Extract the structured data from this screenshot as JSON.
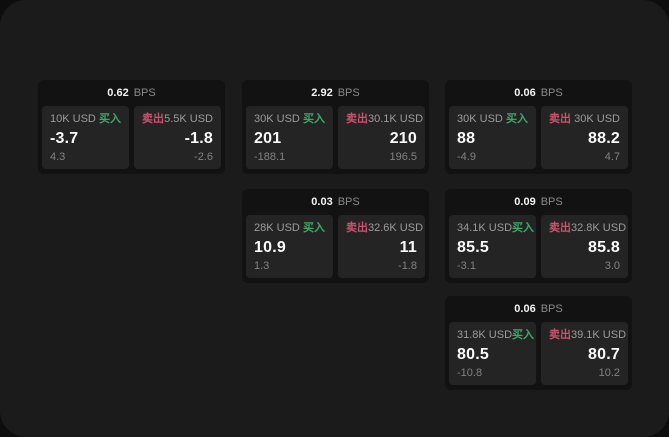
{
  "colors": {
    "outer_background": "#0d0d0d",
    "surface": "#1b1b1b",
    "card_background": "#121212",
    "panel_background": "#242424",
    "text_primary": "#fafafa",
    "text_secondary": "#9b9b9b",
    "text_dim": "#828282",
    "buy_green": "#3fa768",
    "sell_red": "#c9536e"
  },
  "labels": {
    "bps": "BPS",
    "buy": "买入",
    "sell": "卖出"
  },
  "cards": [
    {
      "bps": "0.62",
      "col": 1,
      "row": 1,
      "buy": {
        "amount": "10K USD",
        "value": "-3.7",
        "sub": "4.3"
      },
      "sell": {
        "amount": "5.5K USD",
        "value": "-1.8",
        "sub": "-2.6"
      }
    },
    {
      "bps": "2.92",
      "col": 2,
      "row": 1,
      "buy": {
        "amount": "30K USD",
        "value": "201",
        "sub": "-188.1"
      },
      "sell": {
        "amount": "30.1K USD",
        "value": "210",
        "sub": "196.5"
      }
    },
    {
      "bps": "0.06",
      "col": 3,
      "row": 1,
      "buy": {
        "amount": "30K USD",
        "value": "88",
        "sub": "-4.9"
      },
      "sell": {
        "amount": "30K USD",
        "value": "88.2",
        "sub": "4.7"
      }
    },
    {
      "bps": "0.03",
      "col": 2,
      "row": 2,
      "buy": {
        "amount": "28K USD",
        "value": "10.9",
        "sub": "1.3"
      },
      "sell": {
        "amount": "32.6K USD",
        "value": "11",
        "sub": "-1.8"
      }
    },
    {
      "bps": "0.09",
      "col": 3,
      "row": 2,
      "buy": {
        "amount": "34.1K USD",
        "value": "85.5",
        "sub": "-3.1"
      },
      "sell": {
        "amount": "32.8K USD",
        "value": "85.8",
        "sub": "3.0"
      }
    },
    {
      "bps": "0.06",
      "col": 3,
      "row": 3,
      "buy": {
        "amount": "31.8K USD",
        "value": "80.5",
        "sub": "-10.8"
      },
      "sell": {
        "amount": "39.1K USD",
        "value": "80.7",
        "sub": "10.2"
      }
    }
  ]
}
